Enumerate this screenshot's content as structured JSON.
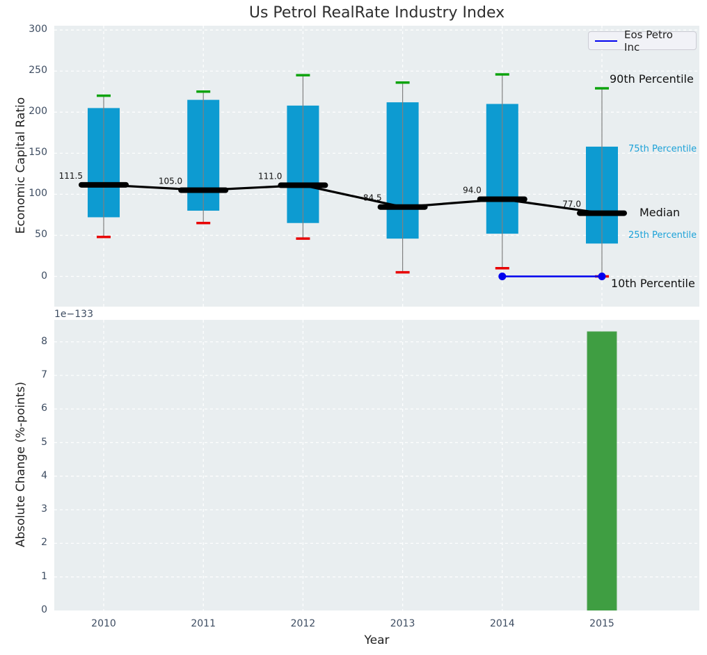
{
  "title": "Us Petrol RealRate Industry Index",
  "legend": {
    "label": "Eos Petro Inc"
  },
  "colors": {
    "axes_background": "#e9eef0",
    "gridline": "#ffffff",
    "box_fill": "#0d9bd1",
    "whisker_line": "#808080",
    "cap_90th": "#0da30d",
    "cap_10th": "#e80000",
    "median_line": "#000000",
    "eos_line": "#0000ee",
    "bar_fill": "#3f9e42",
    "bar_edge": "#4da351",
    "tick_label": "#3d4c61",
    "percentile_label_cyan": "#1da2d8",
    "annotation_black": "#111111"
  },
  "chart_data": [
    {
      "type": "boxplot-percentiles",
      "title": "Us Petrol RealRate Industry Index",
      "ylabel": "Economic Capital Ratio",
      "categories": [
        "2010",
        "2011",
        "2012",
        "2013",
        "2014",
        "2015"
      ],
      "y_ticks": [
        0,
        50,
        100,
        150,
        200,
        250,
        300
      ],
      "ylim": [
        -37,
        305
      ],
      "grid": true,
      "legend_position": "upper right",
      "series": [
        {
          "name": "90th Percentile",
          "values": [
            220,
            225,
            245,
            236,
            246,
            229
          ]
        },
        {
          "name": "75th Percentile",
          "values": [
            205,
            215,
            208,
            212,
            210,
            158
          ]
        },
        {
          "name": "Median",
          "values": [
            111.5,
            105.0,
            111.0,
            84.5,
            94.0,
            77.0
          ]
        },
        {
          "name": "25th Percentile",
          "values": [
            72,
            80,
            65,
            46,
            52,
            40
          ]
        },
        {
          "name": "10th Percentile",
          "values": [
            48,
            65,
            46,
            5,
            10,
            0
          ]
        },
        {
          "name": "Eos Petro Inc",
          "x": [
            "2014",
            "2015"
          ],
          "values": [
            0,
            0
          ]
        }
      ],
      "median_labels": [
        "111.5",
        "105.0",
        "111.0",
        "84.5",
        "94.0",
        "77.0"
      ],
      "right_labels": [
        {
          "text": "90th Percentile",
          "style": "major"
        },
        {
          "text": "75th Percentile",
          "style": "minor"
        },
        {
          "text": "Median",
          "style": "major"
        },
        {
          "text": "25th Percentile",
          "style": "minor"
        },
        {
          "text": "10th Percentile",
          "style": "major"
        }
      ]
    },
    {
      "type": "bar",
      "ylabel": "Absolute Change (%-points)",
      "xlabel": "Year",
      "offset_text": "1e−133",
      "scale_factor": "1e-133",
      "categories": [
        "2010",
        "2011",
        "2012",
        "2013",
        "2014",
        "2015"
      ],
      "values_e133": [
        0,
        0,
        0,
        0,
        0,
        8.3
      ],
      "y_ticks": [
        0,
        1,
        2,
        3,
        4,
        5,
        6,
        7,
        8
      ],
      "ylim_e133": [
        0,
        8.65
      ],
      "grid": true
    }
  ]
}
